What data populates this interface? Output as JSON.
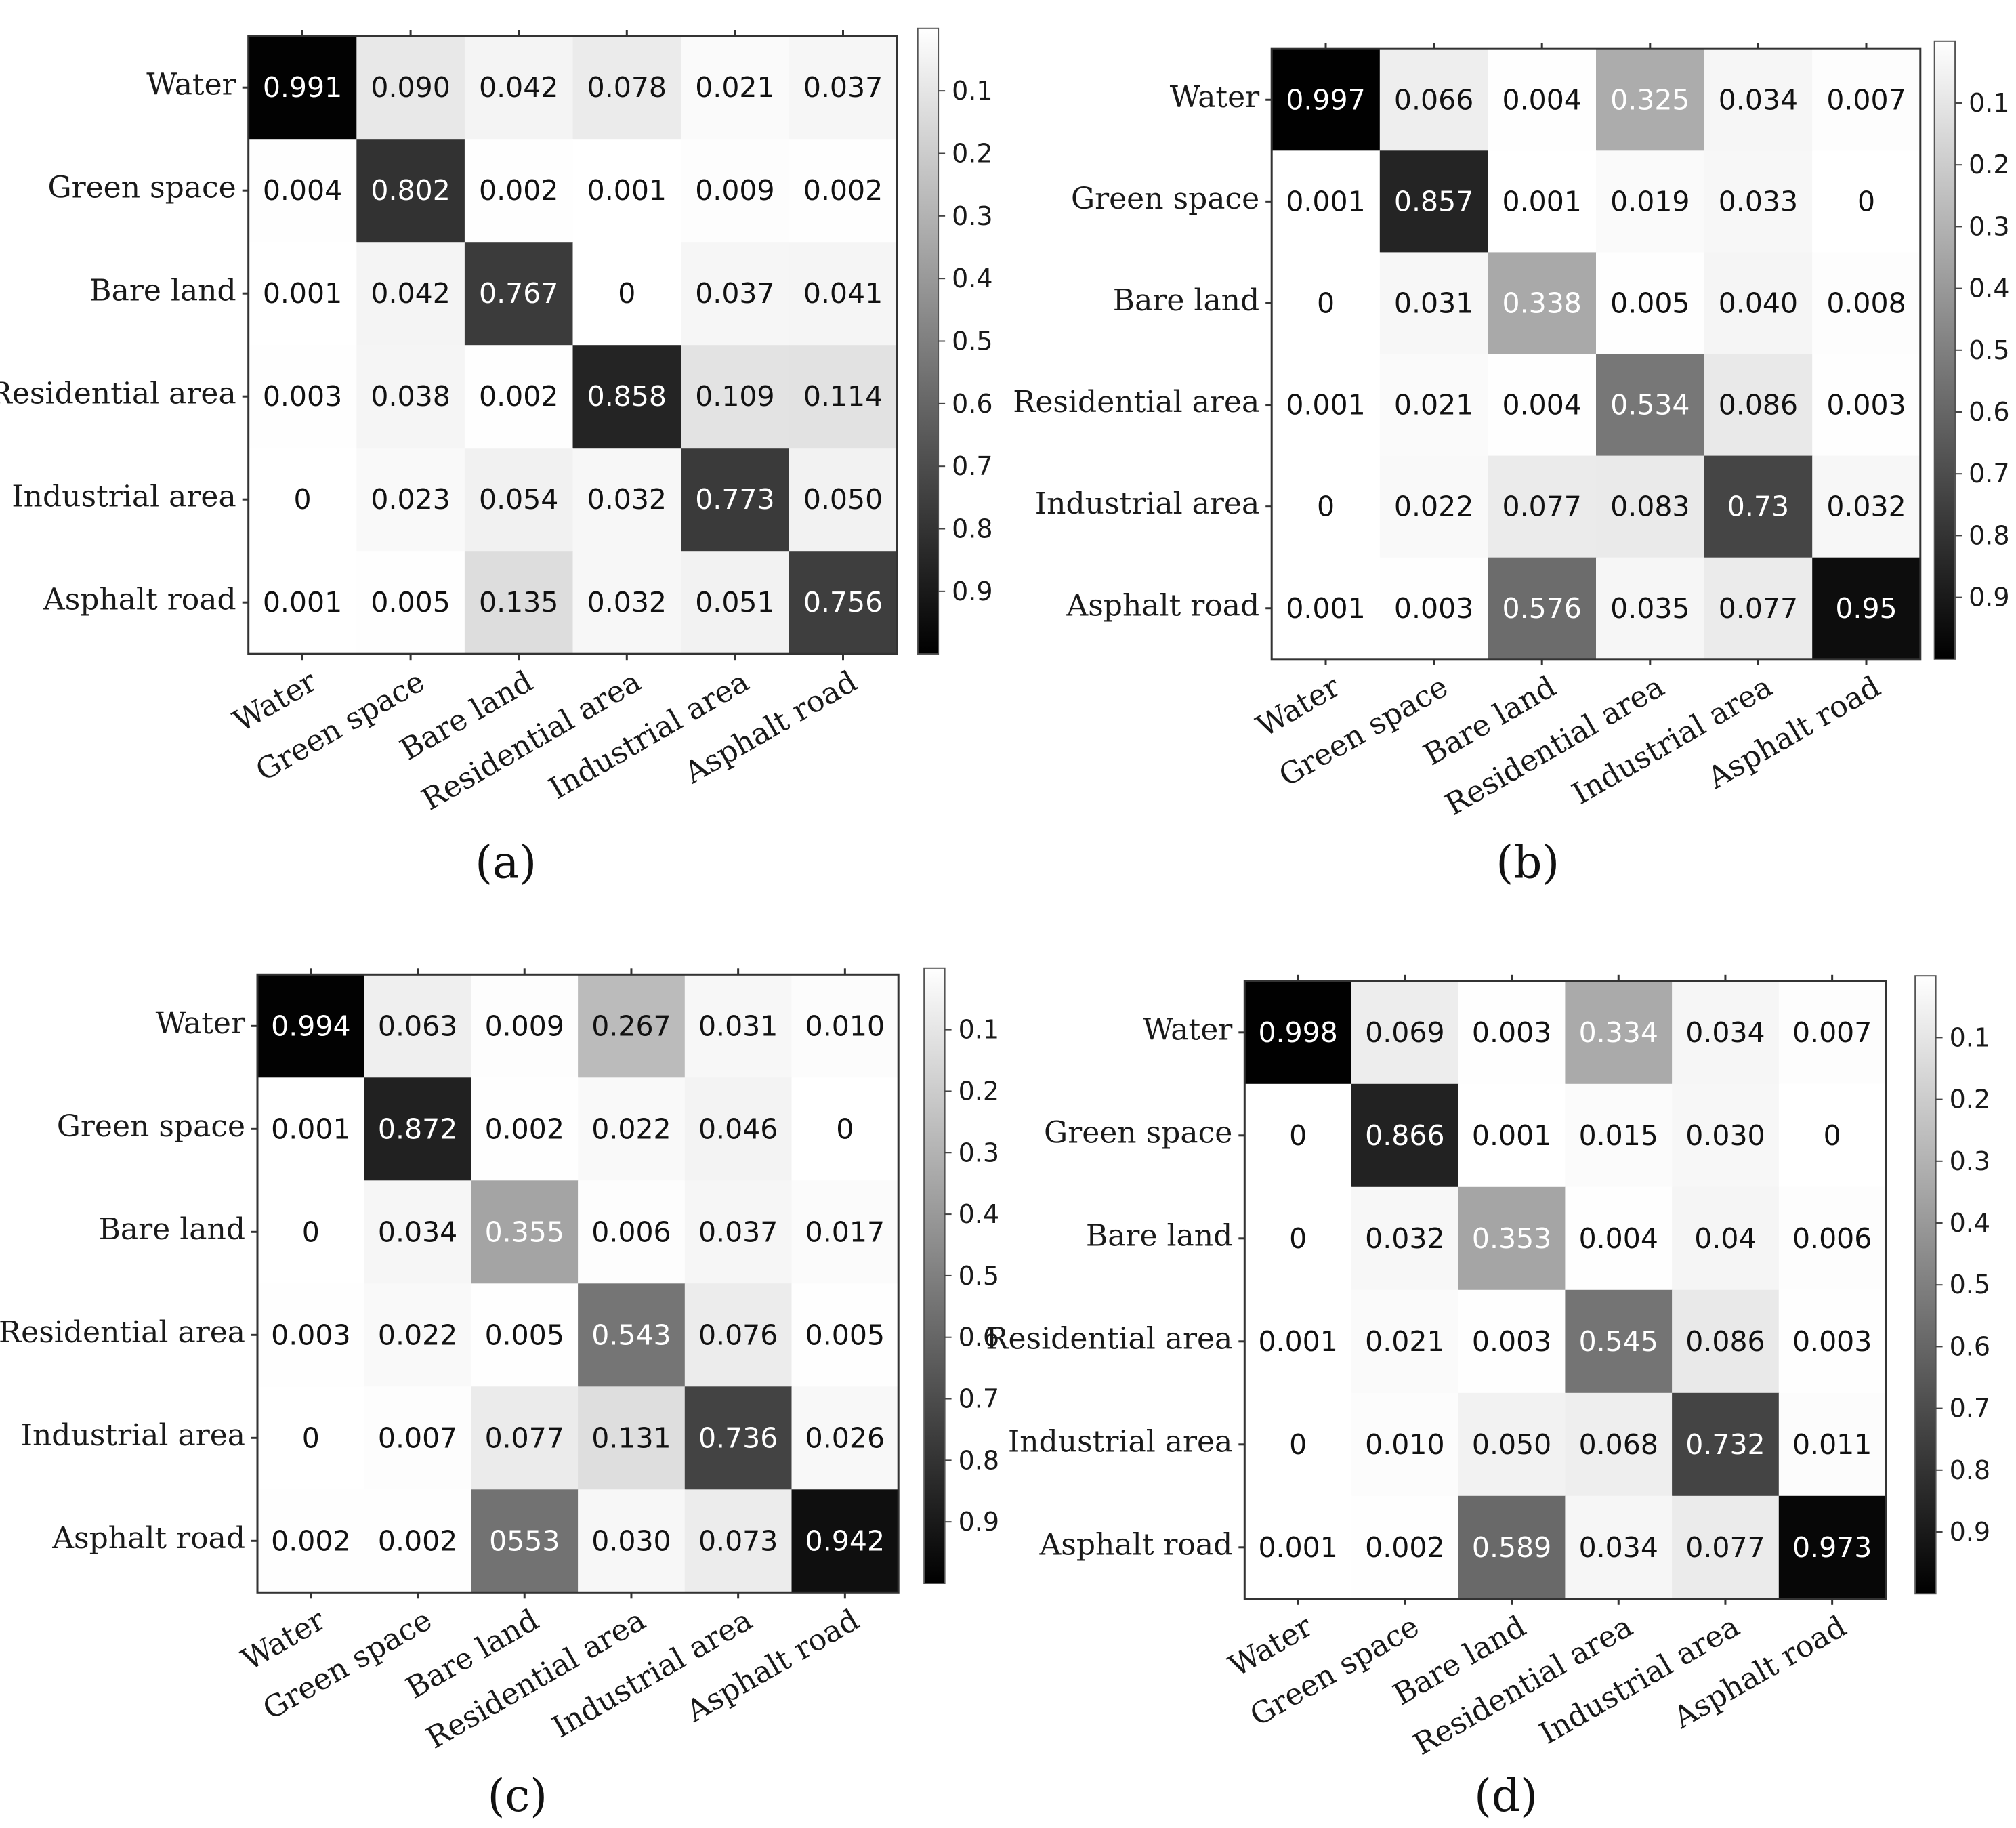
{
  "chart_data": [
    {
      "type": "heatmap",
      "panel_label": "(a)",
      "row_labels": [
        "Water",
        "Green space",
        "Bare land",
        "Residential area",
        "Industrial area",
        "Asphalt road"
      ],
      "col_labels": [
        "Water",
        "Green space",
        "Bare land",
        "Residential area",
        "Industrial area",
        "Asphalt road"
      ],
      "display": [
        [
          "0.991",
          "0.090",
          "0.042",
          "0.078",
          "0.021",
          "0.037"
        ],
        [
          "0.004",
          "0.802",
          "0.002",
          "0.001",
          "0.009",
          "0.002"
        ],
        [
          "0.001",
          "0.042",
          "0.767",
          "0",
          "0.037",
          "0.041"
        ],
        [
          "0.003",
          "0.038",
          "0.002",
          "0.858",
          "0.109",
          "0.114"
        ],
        [
          "0",
          "0.023",
          "0.054",
          "0.032",
          "0.773",
          "0.050"
        ],
        [
          "0.001",
          "0.005",
          "0.135",
          "0.032",
          "0.051",
          "0.756"
        ]
      ],
      "colorbar_ticks": [
        "0.1",
        "0.2",
        "0.3",
        "0.4",
        "0.5",
        "0.6",
        "0.7",
        "0.8",
        "0.9"
      ],
      "colormap": "gray_reversed",
      "vmin": 0,
      "vmax": 1
    },
    {
      "type": "heatmap",
      "panel_label": "(b)",
      "row_labels": [
        "Water",
        "Green space",
        "Bare land",
        "Residential area",
        "Industrial area",
        "Asphalt road"
      ],
      "col_labels": [
        "Water",
        "Green space",
        "Bare land",
        "Residential area",
        "Industrial area",
        "Asphalt road"
      ],
      "display": [
        [
          "0.997",
          "0.066",
          "0.004",
          "0.325",
          "0.034",
          "0.007"
        ],
        [
          "0.001",
          "0.857",
          "0.001",
          "0.019",
          "0.033",
          "0"
        ],
        [
          "0",
          "0.031",
          "0.338",
          "0.005",
          "0.040",
          "0.008"
        ],
        [
          "0.001",
          "0.021",
          "0.004",
          "0.534",
          "0.086",
          "0.003"
        ],
        [
          "0",
          "0.022",
          "0.077",
          "0.083",
          "0.73",
          "0.032"
        ],
        [
          "0.001",
          "0.003",
          "0.576",
          "0.035",
          "0.077",
          "0.95"
        ]
      ],
      "colorbar_ticks": [
        "0.1",
        "0.2",
        "0.3",
        "0.4",
        "0.5",
        "0.6",
        "0.7",
        "0.8",
        "0.9"
      ],
      "colormap": "gray_reversed",
      "vmin": 0,
      "vmax": 1
    },
    {
      "type": "heatmap",
      "panel_label": "(c)",
      "row_labels": [
        "Water",
        "Green space",
        "Bare land",
        "Residential area",
        "Industrial area",
        "Asphalt road"
      ],
      "col_labels": [
        "Water",
        "Green space",
        "Bare land",
        "Residential area",
        "Industrial area",
        "Asphalt road"
      ],
      "display": [
        [
          "0.994",
          "0.063",
          "0.009",
          "0.267",
          "0.031",
          "0.010"
        ],
        [
          "0.001",
          "0.872",
          "0.002",
          "0.022",
          "0.046",
          "0"
        ],
        [
          "0",
          "0.034",
          "0.355",
          "0.006",
          "0.037",
          "0.017"
        ],
        [
          "0.003",
          "0.022",
          "0.005",
          "0.543",
          "0.076",
          "0.005"
        ],
        [
          "0",
          "0.007",
          "0.077",
          "0.131",
          "0.736",
          "0.026"
        ],
        [
          "0.002",
          "0.002",
          "0553",
          "0.030",
          "0.073",
          "0.942"
        ]
      ],
      "colorbar_ticks": [
        "0.1",
        "0.2",
        "0.3",
        "0.4",
        "0.5",
        "0.6",
        "0.7",
        "0.8",
        "0.9"
      ],
      "colormap": "gray_reversed",
      "vmin": 0,
      "vmax": 1
    },
    {
      "type": "heatmap",
      "panel_label": "(d)",
      "row_labels": [
        "Water",
        "Green space",
        "Bare land",
        "Residential area",
        "Industrial area",
        "Asphalt road"
      ],
      "col_labels": [
        "Water",
        "Green space",
        "Bare land",
        "Residential area",
        "Industrial area",
        "Asphalt road"
      ],
      "display": [
        [
          "0.998",
          "0.069",
          "0.003",
          "0.334",
          "0.034",
          "0.007"
        ],
        [
          "0",
          "0.866",
          "0.001",
          "0.015",
          "0.030",
          "0"
        ],
        [
          "0",
          "0.032",
          "0.353",
          "0.004",
          "0.04",
          "0.006"
        ],
        [
          "0.001",
          "0.021",
          "0.003",
          "0.545",
          "0.086",
          "0.003"
        ],
        [
          "0",
          "0.010",
          "0.050",
          "0.068",
          "0.732",
          "0.011"
        ],
        [
          "0.001",
          "0.002",
          "0.589",
          "0.034",
          "0.077",
          "0.973"
        ]
      ],
      "colorbar_ticks": [
        "0.1",
        "0.2",
        "0.3",
        "0.4",
        "0.5",
        "0.6",
        "0.7",
        "0.8",
        "0.9"
      ],
      "colormap": "gray_reversed",
      "vmin": 0,
      "vmax": 1
    }
  ]
}
